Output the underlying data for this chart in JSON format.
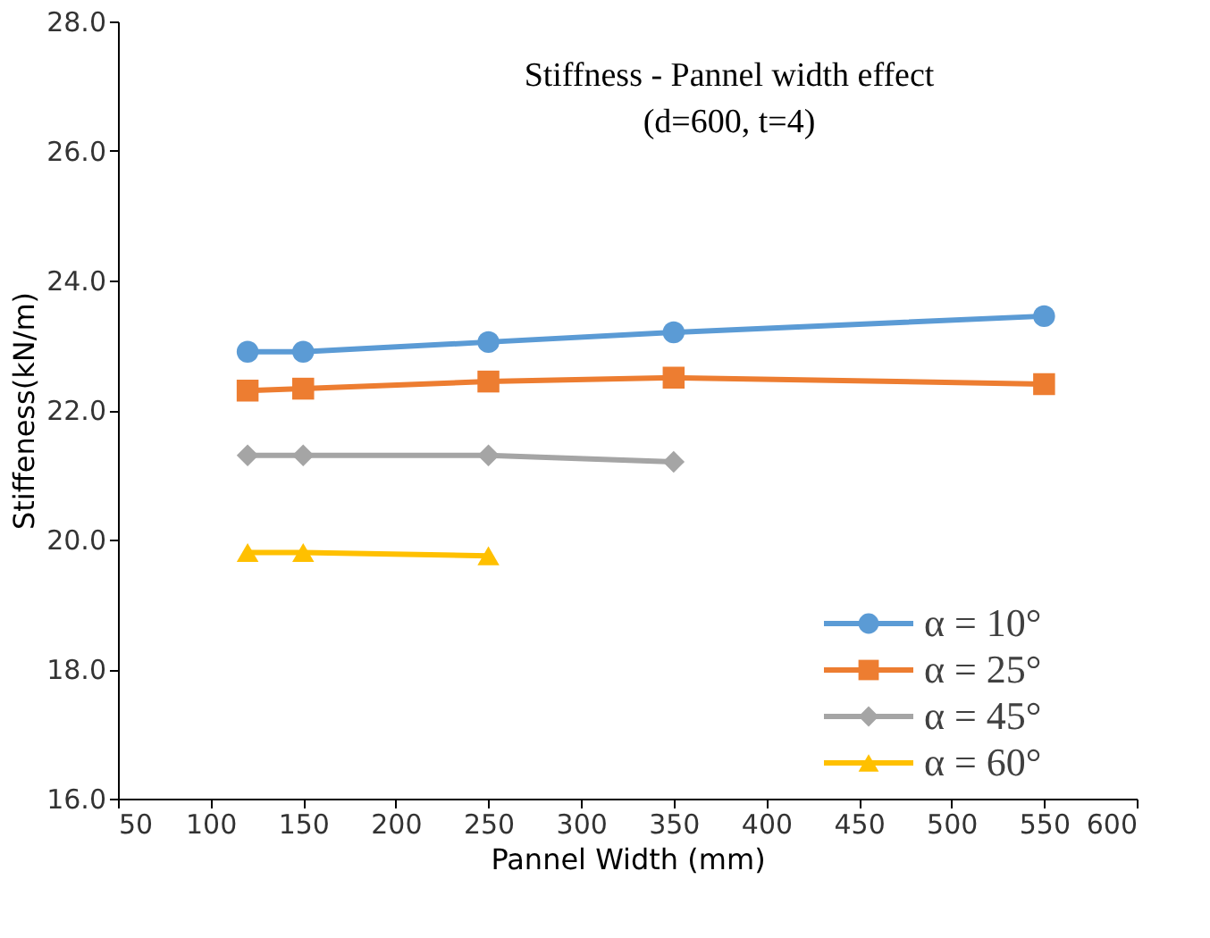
{
  "chart_data": {
    "type": "line",
    "title": "Stiffness - Pannel width effect",
    "subtitle": "(d=600, t=4)",
    "xlabel": "Pannel Width (mm)",
    "ylabel": "Stiffeness(kN/m)",
    "series": [
      {
        "name": "α = 10°",
        "color": "#5b9bd5",
        "marker": "circle",
        "x": [
          120,
          150,
          250,
          350,
          550
        ],
        "values": [
          22.9,
          22.9,
          23.05,
          23.2,
          23.45
        ]
      },
      {
        "name": "α = 25°",
        "color": "#ed7d31",
        "marker": "square",
        "x": [
          120,
          150,
          250,
          350,
          550
        ],
        "values": [
          22.3,
          22.33,
          22.44,
          22.5,
          22.4
        ]
      },
      {
        "name": "α = 45°",
        "color": "#a5a5a5",
        "marker": "diamond",
        "x": [
          120,
          150,
          250,
          350
        ],
        "values": [
          21.3,
          21.3,
          21.3,
          21.2
        ]
      },
      {
        "name": "α = 60°",
        "color": "#ffc000",
        "marker": "triangle",
        "x": [
          120,
          150,
          250
        ],
        "values": [
          19.8,
          19.8,
          19.75
        ]
      }
    ],
    "xlim": [
      50,
      600
    ],
    "xticks": [
      50,
      100,
      150,
      200,
      250,
      300,
      350,
      400,
      450,
      500,
      550,
      600
    ],
    "ylim": [
      16,
      28
    ],
    "yticks": [
      {
        "value": 16,
        "label": "16.0"
      },
      {
        "value": 18,
        "label": "18.0"
      },
      {
        "value": 20,
        "label": "20.0"
      },
      {
        "value": 22,
        "label": "22.0"
      },
      {
        "value": 24,
        "label": "24.0"
      },
      {
        "value": 26,
        "label": "26.0"
      },
      {
        "value": 28,
        "label": "28.0"
      }
    ],
    "grid": false,
    "legend": "bottom right",
    "line_style": "solid"
  }
}
